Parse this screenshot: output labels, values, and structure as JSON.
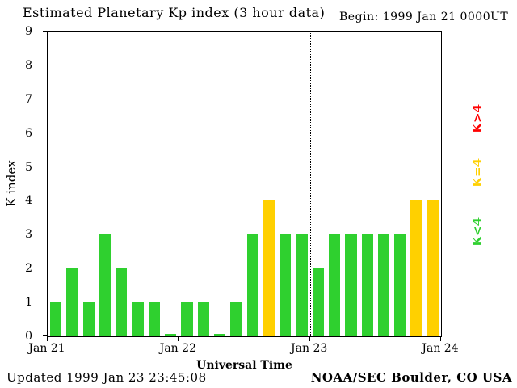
{
  "header": {
    "begin_label": "Begin:",
    "begin_value": "1999 Jan 21 0000UT"
  },
  "footer": {
    "updated": "Updated 1999 Jan 23 23:45:08",
    "source": "NOAA/SEC Boulder, CO USA"
  },
  "chart_data": {
    "type": "bar",
    "title": "Estimated Planetary Kp index (3 hour data)",
    "xlabel": "Universal Time",
    "ylabel": "K index",
    "ylim": [
      0,
      9
    ],
    "y_ticks": [
      0,
      1,
      2,
      3,
      4,
      5,
      6,
      7,
      8,
      9
    ],
    "x_ticks": [
      "Jan 21",
      "Jan 22",
      "Jan 23",
      "Jan 24"
    ],
    "bars_per_day": 8,
    "values": [
      1,
      2,
      1,
      3,
      2,
      1,
      1,
      0,
      1,
      1,
      0,
      1,
      3,
      4,
      3,
      3,
      2,
      3,
      3,
      3,
      3,
      3,
      4,
      4
    ],
    "colors": {
      "below4": "#2fd02f",
      "equal4": "#ffd000",
      "above4": "#ff0000"
    },
    "legend": [
      {
        "label": "K>4",
        "color": "#ff0000"
      },
      {
        "label": "K=4",
        "color": "#ffd000"
      },
      {
        "label": "K<4",
        "color": "#2fd02f"
      }
    ],
    "legend_position": "right",
    "grid": "dotted vertical lines at interior day boundaries"
  }
}
